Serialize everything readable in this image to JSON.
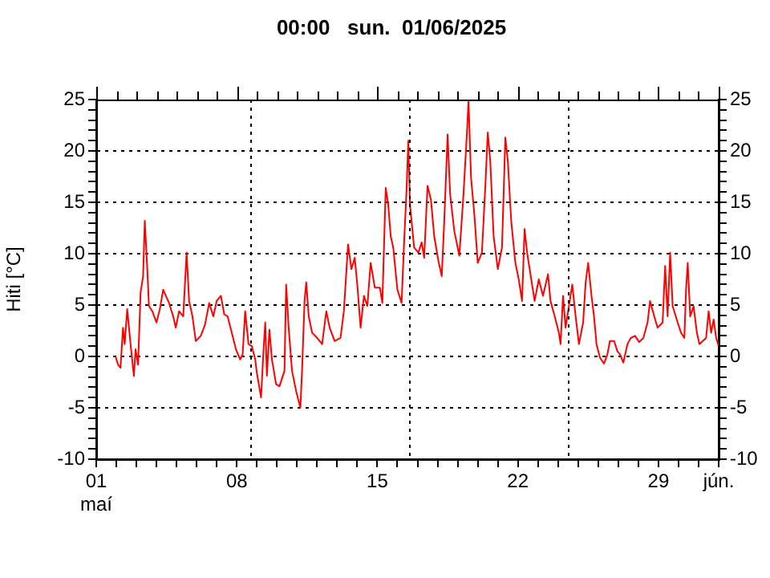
{
  "chart_data": {
    "type": "line",
    "title": "00:00   sun.  01/06/2025",
    "ylabel": "Hiti [°C]",
    "color": "#ff0000",
    "marker": "none",
    "line_style": "solid",
    "legend": false,
    "grid": "y",
    "xlim": [
      "2025-05-01",
      "2025-06-01"
    ],
    "xticks": [
      {
        "value": "2025-05-01",
        "label": "01\nmaí"
      },
      {
        "value": "2025-05-02",
        "label": null
      },
      {
        "value": "2025-05-03",
        "label": null
      },
      {
        "value": "2025-05-04",
        "label": null
      },
      {
        "value": "2025-05-05",
        "label": null
      },
      {
        "value": "2025-05-06",
        "label": null
      },
      {
        "value": "2025-05-07",
        "label": null
      },
      {
        "value": "2025-05-08",
        "label": "08"
      },
      {
        "value": "2025-05-09",
        "label": null
      },
      {
        "value": "2025-05-10",
        "label": null
      },
      {
        "value": "2025-05-11",
        "label": null
      },
      {
        "value": "2025-05-12",
        "label": null
      },
      {
        "value": "2025-05-13",
        "label": null
      },
      {
        "value": "2025-05-14",
        "label": null
      },
      {
        "value": "2025-05-15",
        "label": "15"
      },
      {
        "value": "2025-05-16",
        "label": null
      },
      {
        "value": "2025-05-17",
        "label": null
      },
      {
        "value": "2025-05-18",
        "label": null
      },
      {
        "value": "2025-05-19",
        "label": null
      },
      {
        "value": "2025-05-20",
        "label": null
      },
      {
        "value": "2025-05-21",
        "label": null
      },
      {
        "value": "2025-05-22",
        "label": "22"
      },
      {
        "value": "2025-05-23",
        "label": null
      },
      {
        "value": "2025-05-24",
        "label": null
      },
      {
        "value": "2025-05-25",
        "label": null
      },
      {
        "value": "2025-05-26",
        "label": null
      },
      {
        "value": "2025-05-27",
        "label": null
      },
      {
        "value": "2025-05-28",
        "label": null
      },
      {
        "value": "2025-05-29",
        "label": "29"
      },
      {
        "value": "2025-05-30",
        "label": null
      },
      {
        "value": "2025-05-31",
        "label": null
      },
      {
        "value": "2025-06-01",
        "label": "jún."
      }
    ],
    "ylim": [
      -10,
      25
    ],
    "yticks": [
      -10,
      {
        "value": -9,
        "label": null
      },
      {
        "value": -8,
        "label": null
      },
      {
        "value": -7,
        "label": null
      },
      {
        "value": -6,
        "label": null
      },
      -5,
      {
        "value": -4,
        "label": null
      },
      {
        "value": -3,
        "label": null
      },
      {
        "value": -2,
        "label": null
      },
      {
        "value": -1,
        "label": null
      },
      0,
      {
        "value": 1,
        "label": null
      },
      {
        "value": 2,
        "label": null
      },
      {
        "value": 3,
        "label": null
      },
      {
        "value": 4,
        "label": null
      },
      5,
      {
        "value": 6,
        "label": null
      },
      {
        "value": 7,
        "label": null
      },
      {
        "value": 8,
        "label": null
      },
      {
        "value": 9,
        "label": null
      },
      10,
      {
        "value": 11,
        "label": null
      },
      {
        "value": 12,
        "label": null
      },
      {
        "value": 13,
        "label": null
      },
      {
        "value": 14,
        "label": null
      },
      15,
      {
        "value": 16,
        "label": null
      },
      {
        "value": 17,
        "label": null
      },
      {
        "value": 18,
        "label": null
      },
      {
        "value": 19,
        "label": null
      },
      20,
      {
        "value": 21,
        "label": null
      },
      {
        "value": 22,
        "label": null
      },
      {
        "value": 23,
        "label": null
      },
      {
        "value": 24,
        "label": null
      },
      25
    ],
    "y2lim": [
      -10,
      25
    ],
    "y2ticks": [
      -10,
      {
        "value": -9,
        "label": null
      },
      {
        "value": -8,
        "label": null
      },
      {
        "value": -7,
        "label": null
      },
      {
        "value": -6,
        "label": null
      },
      -5,
      {
        "value": -4,
        "label": null
      },
      {
        "value": -3,
        "label": null
      },
      {
        "value": -2,
        "label": null
      },
      {
        "value": -1,
        "label": null
      },
      0,
      {
        "value": 1,
        "label": null
      },
      {
        "value": 2,
        "label": null
      },
      {
        "value": 3,
        "label": null
      },
      {
        "value": 4,
        "label": null
      },
      5,
      {
        "value": 6,
        "label": null
      },
      {
        "value": 7,
        "label": null
      },
      {
        "value": 8,
        "label": null
      },
      {
        "value": 9,
        "label": null
      },
      10,
      {
        "value": 11,
        "label": null
      },
      {
        "value": 12,
        "label": null
      },
      {
        "value": 13,
        "label": null
      },
      {
        "value": 14,
        "label": null
      },
      15,
      {
        "value": 16,
        "label": null
      },
      {
        "value": 17,
        "label": null
      },
      {
        "value": 18,
        "label": null
      },
      {
        "value": 19,
        "label": null
      },
      20,
      {
        "value": 21,
        "label": null
      },
      {
        "value": 22,
        "label": null
      },
      {
        "value": 23,
        "label": null
      },
      {
        "value": 24,
        "label": null
      },
      25
    ],
    "ref_lines": [
      {
        "axis": "x",
        "value": "2025-05-08T17:00",
        "color": "#000000",
        "line_style": "dotted"
      },
      {
        "axis": "x",
        "value": "2025-05-16T14:00",
        "color": "#000000",
        "line_style": "dotted"
      },
      {
        "axis": "x",
        "value": "2025-05-24T11:00",
        "color": "#000000",
        "line_style": "dotted"
      }
    ],
    "x": [
      "2025-05-01T23:00",
      "2025-05-02T02:00",
      "2025-05-02T05:00",
      "2025-05-02T08:00",
      "2025-05-02T10:00",
      "2025-05-02T13:00",
      "2025-05-02T17:00",
      "2025-05-02T21:00",
      "2025-05-02T23:00",
      "2025-05-03T02:00",
      "2025-05-03T05:00",
      "2025-05-03T08:00",
      "2025-05-03T10:00",
      "2025-05-03T13:00",
      "2025-05-03T15:00",
      "2025-05-03T19:00",
      "2025-05-04T00:00",
      "2025-05-04T04:00",
      "2025-05-04T08:00",
      "2025-05-04T15:00",
      "2025-05-04T20:00",
      "2025-05-04T23:00",
      "2025-05-05T03:00",
      "2025-05-05T08:00",
      "2025-05-05T12:00",
      "2025-05-05T15:00",
      "2025-05-05T19:00",
      "2025-05-05T23:00",
      "2025-05-06T05:00",
      "2025-05-06T10:00",
      "2025-05-06T15:00",
      "2025-05-06T20:00",
      "2025-05-07T00:00",
      "2025-05-07T05:00",
      "2025-05-07T09:00",
      "2025-05-07T13:00",
      "2025-05-07T18:00",
      "2025-05-07T23:00",
      "2025-05-08T04:00",
      "2025-05-08T07:00",
      "2025-05-08T10:00",
      "2025-05-08T14:00",
      "2025-05-08T18:00",
      "2025-05-08T22:00",
      "2025-05-09T00:00",
      "2025-05-09T05:00",
      "2025-05-09T08:00",
      "2025-05-09T10:00",
      "2025-05-09T12:00",
      "2025-05-09T15:00",
      "2025-05-09T18:00",
      "2025-05-09T23:00",
      "2025-05-10T03:00",
      "2025-05-10T09:00",
      "2025-05-10T11:00",
      "2025-05-10T14:00",
      "2025-05-10T18:00",
      "2025-05-10T23:00",
      "2025-05-11T04:00",
      "2025-05-11T06:00",
      "2025-05-11T09:00",
      "2025-05-11T11:00",
      "2025-05-11T14:00",
      "2025-05-11T18:00",
      "2025-05-11T23:00",
      "2025-05-12T06:00",
      "2025-05-12T11:00",
      "2025-05-12T15:00",
      "2025-05-12T21:00",
      "2025-05-13T04:00",
      "2025-05-13T08:00",
      "2025-05-13T13:00",
      "2025-05-13T17:00",
      "2025-05-13T21:00",
      "2025-05-14T00:00",
      "2025-05-14T04:00",
      "2025-05-14T08:00",
      "2025-05-14T12:00",
      "2025-05-14T16:00",
      "2025-05-14T21:00",
      "2025-05-15T03:00",
      "2025-05-15T06:00",
      "2025-05-15T10:00",
      "2025-05-15T13:00",
      "2025-05-15T16:00",
      "2025-05-15T19:00",
      "2025-05-16T00:00",
      "2025-05-16T05:00",
      "2025-05-16T08:00",
      "2025-05-16T11:00",
      "2025-05-16T13:00",
      "2025-05-16T15:00",
      "2025-05-16T20:00",
      "2025-05-17T01:00",
      "2025-05-17T05:00",
      "2025-05-17T08:00",
      "2025-05-17T12:00",
      "2025-05-17T16:00",
      "2025-05-17T20:00",
      "2025-05-18T01:00",
      "2025-05-18T05:00",
      "2025-05-18T08:00",
      "2025-05-18T12:00",
      "2025-05-18T15:00",
      "2025-05-18T20:00",
      "2025-05-19T02:00",
      "2025-05-19T07:00",
      "2025-05-19T11:00",
      "2025-05-19T13:00",
      "2025-05-19T16:00",
      "2025-05-19T20:00",
      "2025-05-20T00:00",
      "2025-05-20T05:00",
      "2025-05-20T09:00",
      "2025-05-20T12:00",
      "2025-05-20T15:00",
      "2025-05-20T19:00",
      "2025-05-21T00:00",
      "2025-05-21T05:00",
      "2025-05-21T09:00",
      "2025-05-21T12:00",
      "2025-05-21T16:00",
      "2025-05-21T21:00",
      "2025-05-22T01:00",
      "2025-05-22T05:00",
      "2025-05-22T08:00",
      "2025-05-22T11:00",
      "2025-05-22T16:00",
      "2025-05-22T20:00",
      "2025-05-23T01:00",
      "2025-05-23T06:00",
      "2025-05-23T12:00",
      "2025-05-23T15:00",
      "2025-05-23T20:00",
      "2025-05-24T01:00",
      "2025-05-24T03:00",
      "2025-05-24T06:00",
      "2025-05-24T09:00",
      "2025-05-24T13:00",
      "2025-05-24T17:00",
      "2025-05-24T21:00",
      "2025-05-25T01:00",
      "2025-05-25T06:00",
      "2025-05-25T09:00",
      "2025-05-25T12:00",
      "2025-05-25T16:00",
      "2025-05-25T19:00",
      "2025-05-25T22:00",
      "2025-05-26T02:00",
      "2025-05-26T07:00",
      "2025-05-26T11:00",
      "2025-05-26T14:00",
      "2025-05-26T19:00",
      "2025-05-26T23:00",
      "2025-05-27T02:00",
      "2025-05-27T06:00",
      "2025-05-27T11:00",
      "2025-05-27T15:00",
      "2025-05-27T20:00",
      "2025-05-28T01:00",
      "2025-05-28T06:00",
      "2025-05-28T11:00",
      "2025-05-28T14:00",
      "2025-05-28T19:00",
      "2025-05-28T23:00",
      "2025-05-29T05:00",
      "2025-05-29T08:00",
      "2025-05-29T11:00",
      "2025-05-29T14:00",
      "2025-05-29T17:00",
      "2025-05-29T23:00",
      "2025-05-30T03:00",
      "2025-05-30T07:00",
      "2025-05-30T09:00",
      "2025-05-30T11:00",
      "2025-05-30T14:00",
      "2025-05-30T18:00",
      "2025-05-30T22:00",
      "2025-05-31T01:00",
      "2025-05-31T05:00",
      "2025-05-31T09:00",
      "2025-05-31T12:00",
      "2025-05-31T15:00",
      "2025-05-31T18:00",
      "2025-05-31T21:00",
      "2025-06-01T00:00"
    ],
    "values": [
      0,
      -0.8,
      -1.1,
      2.8,
      1.2,
      4.6,
      1.2,
      -1.9,
      0.7,
      -0.8,
      6.2,
      7.8,
      13.2,
      8.5,
      4.9,
      4.4,
      3.3,
      4.6,
      6.5,
      5.2,
      3.9,
      2.8,
      4.4,
      3.9,
      10.1,
      5.4,
      3.9,
      1.5,
      2,
      3.1,
      5.2,
      3.9,
      5.4,
      5.9,
      4.1,
      3.9,
      2.3,
      0.7,
      -0.3,
      0.2,
      4.4,
      1.2,
      1,
      -0.3,
      -1.6,
      -4,
      0.7,
      3.3,
      -1.9,
      2.6,
      -0.3,
      -2.7,
      -2.9,
      -1.4,
      7,
      2.8,
      -1.4,
      -3.4,
      -5,
      -1.4,
      5.4,
      7.2,
      3.9,
      2.3,
      1.9,
      1.2,
      4.4,
      2.8,
      1.5,
      1.8,
      4.4,
      10.9,
      8.5,
      9.6,
      7,
      2.8,
      5.9,
      4.9,
      9.1,
      6.7,
      6.7,
      5.2,
      16.4,
      14.8,
      11.7,
      10.6,
      6.5,
      5.2,
      11.1,
      16.4,
      21,
      14.8,
      10.6,
      10.1,
      11.1,
      9.6,
      16.6,
      15.3,
      11.7,
      9.3,
      7.8,
      13.2,
      21.6,
      15.8,
      12.2,
      9.8,
      15.8,
      21.6,
      24.9,
      17.4,
      13.8,
      9.1,
      10.1,
      16.4,
      21.8,
      19,
      11.7,
      8.5,
      10.6,
      21.3,
      19,
      13.2,
      9.1,
      7.5,
      5.4,
      12.4,
      10.1,
      7.5,
      5.4,
      7.5,
      5.9,
      8,
      5.4,
      3.9,
      2.3,
      1.2,
      5.9,
      2.8,
      4.9,
      7,
      3.9,
      1.2,
      3.3,
      7.2,
      9.1,
      5.9,
      3.9,
      1.2,
      -0.1,
      -0.7,
      0.2,
      1.5,
      1.5,
      0.5,
      0.2,
      -0.6,
      1.2,
      1.8,
      2,
      1.4,
      1.8,
      3.3,
      5.4,
      3.9,
      2.8,
      3.3,
      8.8,
      3.9,
      10.1,
      4.9,
      3.3,
      2.3,
      1.8,
      6.5,
      9.1,
      3.9,
      4.9,
      2.3,
      1.2,
      1.5,
      1.8,
      4.4,
      2.3,
      3.6,
      1.8,
      1
    ]
  }
}
